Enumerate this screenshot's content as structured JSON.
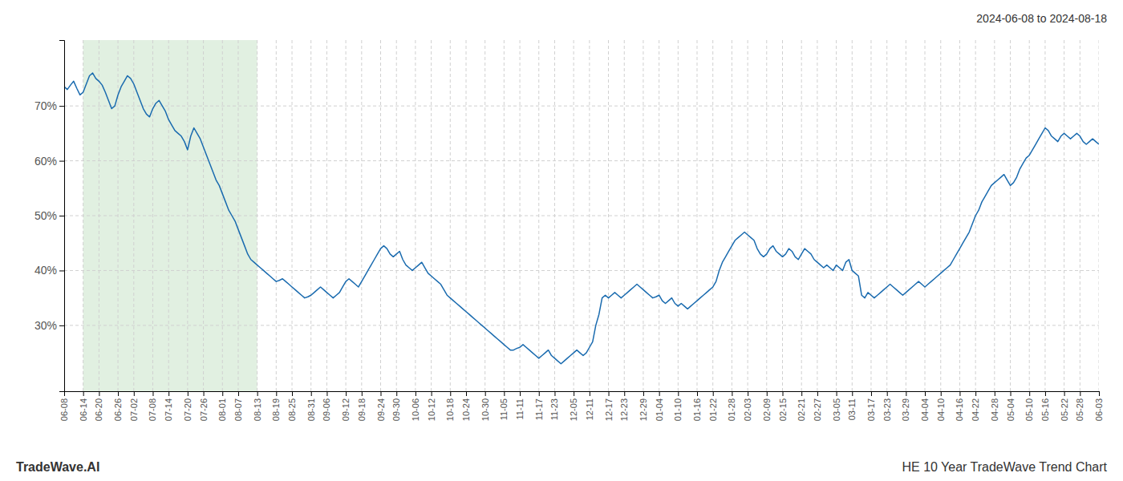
{
  "chart_data": {
    "type": "line",
    "title": "2024-06-08 to 2024-08-18",
    "annotations": [
      "TradeWave.AI",
      "HE 10 Year TradeWave Trend Chart"
    ],
    "color": "#1a6baf",
    "grid": true,
    "ylim": [
      18,
      82
    ],
    "yticks": [
      {
        "value": 30,
        "label": "30%"
      },
      {
        "value": 40,
        "label": "40%"
      },
      {
        "value": 50,
        "label": "50%"
      },
      {
        "value": 60,
        "label": "60%"
      },
      {
        "value": 70,
        "label": "70%"
      }
    ],
    "shaded_span": {
      "from": "06-14",
      "to": "08-13",
      "color": "#d4e9d4"
    },
    "categories": [
      "06-08",
      null,
      null,
      null,
      null,
      null,
      "06-14",
      null,
      null,
      null,
      null,
      "06-20",
      null,
      null,
      null,
      null,
      null,
      "06-26",
      null,
      null,
      null,
      null,
      "07-02",
      null,
      null,
      null,
      null,
      null,
      "07-08",
      null,
      null,
      null,
      null,
      "07-14",
      null,
      null,
      null,
      null,
      null,
      "07-20",
      null,
      null,
      null,
      null,
      "07-26",
      null,
      null,
      null,
      null,
      null,
      "08-01",
      null,
      null,
      null,
      null,
      "08-07",
      null,
      null,
      null,
      null,
      null,
      "08-13",
      null,
      null,
      null,
      null,
      null,
      "08-19",
      null,
      null,
      null,
      null,
      "08-25",
      null,
      null,
      null,
      null,
      null,
      "08-31",
      null,
      null,
      null,
      null,
      "09-06",
      null,
      null,
      null,
      null,
      null,
      "09-12",
      null,
      null,
      null,
      null,
      "09-18",
      null,
      null,
      null,
      null,
      null,
      "09-24",
      null,
      null,
      null,
      null,
      "09-30",
      null,
      null,
      null,
      null,
      null,
      "10-06",
      null,
      null,
      null,
      null,
      "10-12",
      null,
      null,
      null,
      null,
      null,
      "10-18",
      null,
      null,
      null,
      null,
      "10-24",
      null,
      null,
      null,
      null,
      null,
      "10-30",
      null,
      null,
      null,
      null,
      null,
      "11-05",
      null,
      null,
      null,
      null,
      "11-11",
      null,
      null,
      null,
      null,
      null,
      "11-17",
      null,
      null,
      null,
      null,
      "11-23",
      null,
      null,
      null,
      null,
      null,
      "12-05",
      null,
      null,
      null,
      null,
      "12-11",
      null,
      null,
      null,
      null,
      null,
      "12-17",
      null,
      null,
      null,
      null,
      "12-23",
      null,
      null,
      null,
      null,
      null,
      "12-29",
      null,
      null,
      null,
      null,
      "01-04",
      null,
      null,
      null,
      null,
      null,
      "01-10",
      null,
      null,
      null,
      null,
      null,
      "01-16",
      null,
      null,
      null,
      null,
      "01-22",
      null,
      null,
      null,
      null,
      null,
      "01-28",
      null,
      null,
      null,
      null,
      "02-03",
      null,
      null,
      null,
      null,
      null,
      "02-09",
      null,
      null,
      null,
      null,
      "02-15",
      null,
      null,
      null,
      null,
      null,
      "02-21",
      null,
      null,
      null,
      null,
      "02-27",
      null,
      null,
      null,
      null,
      null,
      "03-05",
      null,
      null,
      null,
      null,
      "03-11",
      null,
      null,
      null,
      null,
      null,
      "03-17",
      null,
      null,
      null,
      null,
      "03-23",
      null,
      null,
      null,
      null,
      null,
      "03-29",
      null,
      null,
      null,
      null,
      null,
      "04-04",
      null,
      null,
      null,
      null,
      "04-10",
      null,
      null,
      null,
      null,
      null,
      "04-16",
      null,
      null,
      null,
      null,
      "04-22",
      null,
      null,
      null,
      null,
      null,
      "04-28",
      null,
      null,
      null,
      null,
      "05-04",
      null,
      null,
      null,
      null,
      null,
      "05-10",
      null,
      null,
      null,
      null,
      "05-16",
      null,
      null,
      null,
      null,
      null,
      "05-22",
      null,
      null,
      null,
      null,
      "05-28",
      null,
      null,
      null,
      null,
      null,
      "06-03"
    ],
    "values": [
      73.5,
      73.0,
      73.8,
      74.5,
      73.2,
      72.0,
      72.5,
      74.0,
      75.5,
      76.0,
      75.0,
      74.5,
      73.8,
      72.5,
      71.0,
      69.5,
      70.0,
      72.0,
      73.5,
      74.5,
      75.5,
      75.0,
      74.0,
      72.5,
      71.0,
      69.5,
      68.5,
      68.0,
      69.5,
      70.5,
      71.0,
      70.0,
      69.0,
      67.5,
      66.5,
      65.5,
      65.0,
      64.5,
      63.5,
      62.0,
      64.5,
      66.0,
      65.0,
      64.0,
      62.5,
      61.0,
      59.5,
      58.0,
      56.5,
      55.5,
      54.0,
      52.5,
      51.0,
      50.0,
      49.0,
      47.5,
      46.0,
      44.5,
      43.0,
      42.0,
      41.5,
      41.0,
      40.5,
      40.0,
      39.5,
      39.0,
      38.5,
      38.0,
      38.2,
      38.5,
      38.0,
      37.5,
      37.0,
      36.5,
      36.0,
      35.5,
      35.0,
      35.2,
      35.5,
      36.0,
      36.5,
      37.0,
      36.5,
      36.0,
      35.5,
      35.0,
      35.5,
      36.0,
      37.0,
      38.0,
      38.5,
      38.0,
      37.5,
      37.0,
      38.0,
      39.0,
      40.0,
      41.0,
      42.0,
      43.0,
      44.0,
      44.5,
      44.0,
      43.0,
      42.5,
      43.0,
      43.5,
      42.0,
      41.0,
      40.5,
      40.0,
      40.5,
      41.0,
      41.5,
      40.5,
      39.5,
      39.0,
      38.5,
      38.0,
      37.5,
      36.5,
      35.5,
      35.0,
      34.5,
      34.0,
      33.5,
      33.0,
      32.5,
      32.0,
      31.5,
      31.0,
      30.5,
      30.0,
      29.5,
      29.0,
      28.5,
      28.0,
      27.5,
      27.0,
      26.5,
      26.0,
      25.5,
      25.5,
      25.8,
      26.0,
      26.5,
      26.0,
      25.5,
      25.0,
      24.5,
      24.0,
      24.5,
      25.0,
      25.5,
      24.5,
      24.0,
      23.5,
      23.0,
      23.5,
      24.0,
      24.5,
      25.0,
      25.5,
      25.0,
      24.5,
      25.0,
      26.0,
      27.0,
      30.0,
      32.0,
      35.0,
      35.5,
      35.0,
      35.5,
      36.0,
      35.5,
      35.0,
      35.5,
      36.0,
      36.5,
      37.0,
      37.5,
      37.0,
      36.5,
      36.0,
      35.5,
      35.0,
      35.2,
      35.5,
      34.5,
      34.0,
      34.5,
      35.0,
      34.0,
      33.5,
      34.0,
      33.5,
      33.0,
      33.5,
      34.0,
      34.5,
      35.0,
      35.5,
      36.0,
      36.5,
      37.0,
      38.0,
      40.0,
      41.5,
      42.5,
      43.5,
      44.5,
      45.5,
      46.0,
      46.5,
      47.0,
      46.5,
      46.0,
      45.5,
      44.0,
      43.0,
      42.5,
      43.0,
      44.0,
      44.5,
      43.5,
      43.0,
      42.5,
      43.0,
      44.0,
      43.5,
      42.5,
      42.0,
      43.0,
      44.0,
      43.5,
      43.0,
      42.0,
      41.5,
      41.0,
      40.5,
      41.0,
      40.5,
      40.0,
      41.0,
      40.5,
      40.0,
      41.5,
      42.0,
      40.0,
      39.5,
      39.0,
      35.5,
      35.0,
      36.0,
      35.5,
      35.0,
      35.5,
      36.0,
      36.5,
      37.0,
      37.5,
      37.0,
      36.5,
      36.0,
      35.5,
      36.0,
      36.5,
      37.0,
      37.5,
      38.0,
      37.5,
      37.0,
      37.5,
      38.0,
      38.5,
      39.0,
      39.5,
      40.0,
      40.5,
      41.0,
      42.0,
      43.0,
      44.0,
      45.0,
      46.0,
      47.0,
      48.5,
      50.0,
      51.0,
      52.5,
      53.5,
      54.5,
      55.5,
      56.0,
      56.5,
      57.0,
      57.5,
      56.5,
      55.5,
      56.0,
      57.0,
      58.5,
      59.5,
      60.5,
      61.0,
      62.0,
      63.0,
      64.0,
      65.0,
      66.0,
      65.5,
      64.5,
      64.0,
      63.5,
      64.5,
      65.0,
      64.5,
      64.0,
      64.5,
      65.0,
      64.5,
      63.5,
      63.0,
      63.5,
      64.0,
      63.5,
      63.0
    ]
  }
}
